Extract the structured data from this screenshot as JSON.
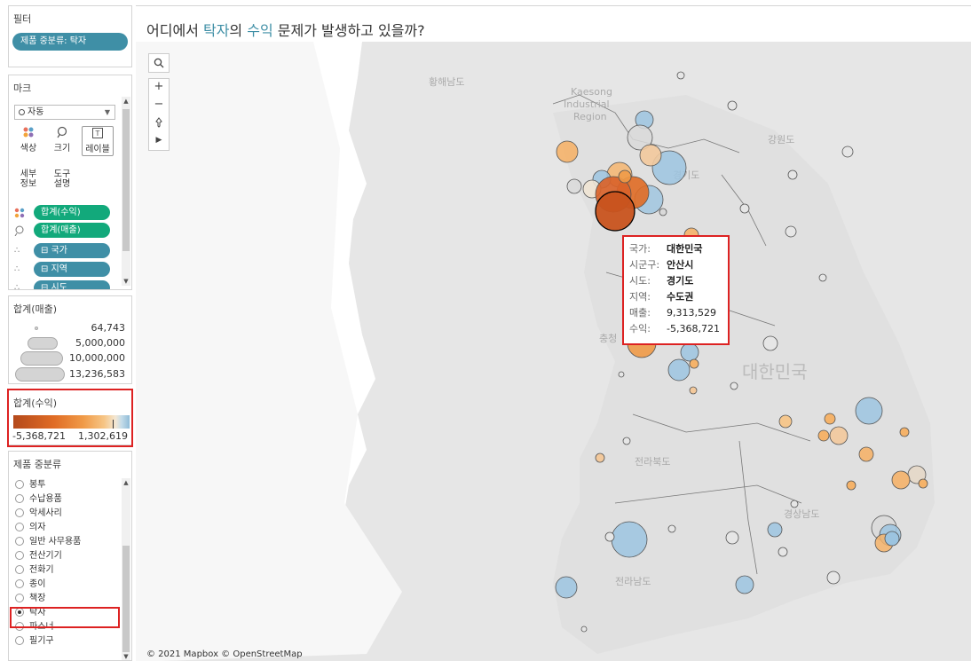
{
  "filters": {
    "title": "필터",
    "pill": "제품 중분류: 탁자"
  },
  "marks": {
    "title": "마크",
    "type_label": "자동",
    "buttons": {
      "color": "색상",
      "size": "크기",
      "label": "레이블",
      "detail_line1": "세부",
      "detail_line2": "정보",
      "tooltip_line1": "도구",
      "tooltip_line2": "설명"
    },
    "shelf": [
      "합계(수익)",
      "합계(매출)",
      "⊟ 국가",
      "⊟ 지역",
      "⊟ 시도"
    ]
  },
  "size_legend": {
    "title": "합계(매출)",
    "values": [
      "64,743",
      "5,000,000",
      "10,000,000",
      "13,236,583"
    ]
  },
  "color_legend": {
    "title": "합계(수익)",
    "min": "-5,368,721",
    "max": "1,302,619",
    "colors": {
      "negative": "#b4491b",
      "mid": "#f09a47",
      "positive": "#8fbcd8"
    }
  },
  "category_filter": {
    "title": "제품 중분류",
    "options": [
      "봉투",
      "수납용품",
      "악세사리",
      "의자",
      "일반 사무용품",
      "전산기기",
      "전화기",
      "종이",
      "책장",
      "탁자",
      "파스너",
      "필기구"
    ],
    "selected": "탁자"
  },
  "view": {
    "title_parts": {
      "prefix": "어디에서 ",
      "highlight1": "탁자",
      "mid1": "의 ",
      "highlight2": "수익",
      "suffix": " 문제가 발생하고 있을까?"
    },
    "tools": {
      "search": "search-icon",
      "zoom_in": "+",
      "zoom_out": "−",
      "pin": "pin-icon",
      "expand": "▶"
    },
    "map_labels": {
      "hwanghae": "황해남도",
      "kaesong1": "Kaesong",
      "kaesong2": "Industrial",
      "kaesong3": "Region",
      "gangwon": "강원도",
      "gyeonggi": "경기도",
      "chungcheong": "충청",
      "korea": "대한민국",
      "jeonbuk": "전라북도",
      "gyeongnam": "경상남도",
      "jeonnam": "전라남도"
    },
    "attribution": "© 2021 Mapbox © OpenStreetMap"
  },
  "tooltip": {
    "rows": [
      {
        "k": "국가:",
        "v": "대한민국"
      },
      {
        "k": "시군구:",
        "v": "안산시"
      },
      {
        "k": "시도:",
        "v": "경기도"
      },
      {
        "k": "지역:",
        "v": "수도권"
      },
      {
        "k": "매출:",
        "v": "9,313,529"
      },
      {
        "k": "수익:",
        "v": "-5,368,721"
      }
    ]
  }
}
